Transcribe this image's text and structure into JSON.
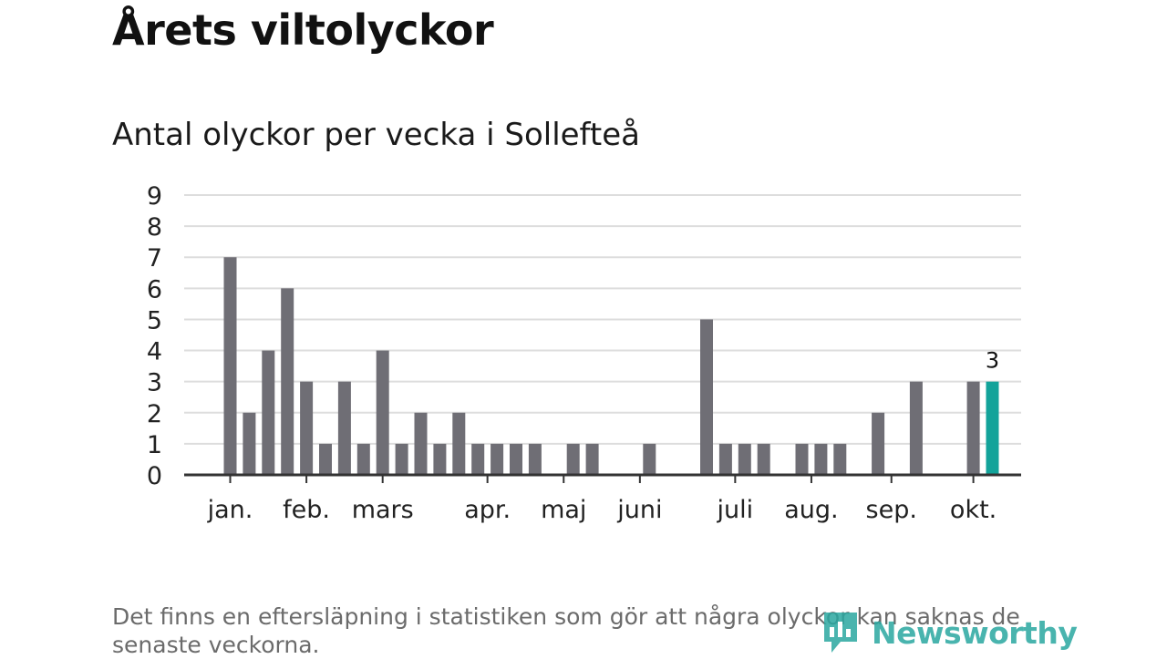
{
  "title": "Årets viltolyckor",
  "subtitle": "Antal olyckor per vecka i Sollefteå",
  "note": "Det finns en eftersläpning i statistiken som gör att några olyckor kan saknas de senaste veckorna.",
  "logo": {
    "text": "Newsworthy",
    "icon": "newsworthy-logo-icon"
  },
  "colors": {
    "bar": "#6f6e75",
    "highlight": "#12a39a",
    "grid": "#dddddd",
    "axis": "#333333"
  },
  "chart_data": {
    "type": "bar",
    "title": "Antal olyckor per vecka i Sollefteå",
    "xlabel": "",
    "ylabel": "",
    "ylim": [
      0,
      9
    ],
    "yticks": [
      "0",
      "1",
      "2",
      "3",
      "4",
      "5",
      "6",
      "7",
      "8",
      "9"
    ],
    "grid": true,
    "x": [
      1,
      2,
      3,
      4,
      5,
      6,
      7,
      8,
      9,
      10,
      11,
      12,
      13,
      14,
      15,
      16,
      17,
      18,
      19,
      20,
      21,
      22,
      23,
      24,
      25,
      26,
      27,
      28,
      29,
      30,
      31,
      32,
      33,
      34,
      35,
      36,
      37,
      38,
      39,
      40,
      41,
      42
    ],
    "values": [
      7,
      2,
      4,
      6,
      3,
      1,
      3,
      1,
      4,
      1,
      2,
      1,
      2,
      1,
      1,
      1,
      1,
      0,
      1,
      1,
      0,
      0,
      1,
      0,
      0,
      5,
      1,
      1,
      1,
      0,
      1,
      1,
      1,
      0,
      2,
      0,
      3,
      0,
      0,
      3,
      3,
      null
    ],
    "highlight_index": 40,
    "highlight_label": "3",
    "months": [
      {
        "label": "jan.",
        "week": 1
      },
      {
        "label": "feb.",
        "week": 5
      },
      {
        "label": "mars",
        "week": 9
      },
      {
        "label": "apr.",
        "week": 14.5
      },
      {
        "label": "maj",
        "week": 18.5
      },
      {
        "label": "juni",
        "week": 22.5
      },
      {
        "label": "juli",
        "week": 27.5
      },
      {
        "label": "aug.",
        "week": 31.5
      },
      {
        "label": "sep.",
        "week": 35.7
      },
      {
        "label": "okt.",
        "week": 40
      }
    ]
  }
}
